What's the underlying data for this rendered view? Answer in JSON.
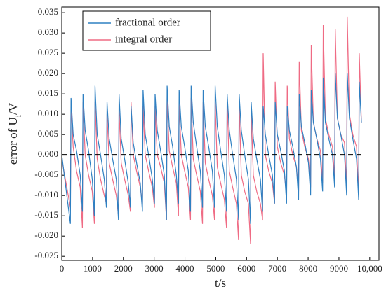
{
  "chart_data": {
    "type": "line",
    "x_label": "t/s",
    "y_label": {
      "main": "error of U",
      "sub": "i",
      "tail": "/V"
    },
    "x": [
      0,
      280,
      300,
      370,
      480,
      600,
      670,
      690,
      760,
      870,
      990,
      1060,
      1080,
      1150,
      1260,
      1380,
      1450,
      1470,
      1540,
      1650,
      1770,
      1840,
      1860,
      1930,
      2040,
      2160,
      2230,
      2250,
      2320,
      2430,
      2550,
      2620,
      2640,
      2710,
      2820,
      2940,
      3010,
      3030,
      3100,
      3210,
      3330,
      3400,
      3420,
      3490,
      3600,
      3720,
      3790,
      3810,
      3880,
      3990,
      4110,
      4180,
      4200,
      4270,
      4380,
      4500,
      4570,
      4590,
      4660,
      4770,
      4890,
      4960,
      4980,
      5050,
      5160,
      5280,
      5350,
      5370,
      5440,
      5550,
      5670,
      5740,
      5760,
      5830,
      5940,
      6060,
      6130,
      6150,
      6220,
      6330,
      6450,
      6520,
      6540,
      6610,
      6720,
      6840,
      6910,
      6930,
      7000,
      7110,
      7230,
      7300,
      7320,
      7390,
      7500,
      7620,
      7690,
      7710,
      7780,
      7890,
      8010,
      8080,
      8100,
      8170,
      8280,
      8400,
      8470,
      8490,
      8560,
      8670,
      8790,
      8860,
      8880,
      8950,
      9060,
      9180,
      9250,
      9270,
      9340,
      9450,
      9570,
      9640,
      9660,
      9730
    ],
    "series": [
      {
        "name": "integral order",
        "color": "#ef6b84",
        "values": [
          -0.001,
          -0.013,
          0.012,
          0.002,
          -0.004,
          -0.008,
          -0.018,
          0.013,
          0.0,
          -0.005,
          -0.009,
          -0.017,
          0.013,
          -0.001,
          -0.006,
          -0.01,
          -0.012,
          0.01,
          -0.002,
          -0.006,
          -0.01,
          -0.015,
          0.011,
          -0.002,
          -0.006,
          -0.01,
          -0.014,
          0.013,
          0.0,
          -0.004,
          -0.008,
          -0.012,
          0.012,
          0.0,
          -0.004,
          -0.008,
          -0.013,
          0.012,
          0.0,
          -0.003,
          -0.007,
          -0.016,
          0.014,
          0.001,
          -0.003,
          -0.007,
          -0.015,
          0.013,
          0.0,
          -0.004,
          -0.008,
          -0.016,
          0.014,
          -0.001,
          -0.005,
          -0.009,
          -0.017,
          0.013,
          -0.002,
          -0.006,
          -0.01,
          -0.016,
          0.013,
          -0.003,
          -0.007,
          -0.011,
          -0.018,
          0.014,
          -0.004,
          -0.008,
          -0.012,
          -0.021,
          0.013,
          -0.005,
          -0.009,
          -0.012,
          -0.022,
          0.011,
          -0.005,
          -0.009,
          -0.012,
          -0.016,
          0.025,
          0.0,
          -0.004,
          -0.007,
          -0.012,
          0.018,
          0.002,
          -0.002,
          -0.005,
          -0.01,
          0.017,
          0.004,
          0.0,
          -0.003,
          -0.009,
          0.023,
          0.006,
          0.002,
          -0.001,
          -0.008,
          0.027,
          0.008,
          0.004,
          0.001,
          -0.007,
          0.032,
          0.009,
          0.005,
          0.002,
          -0.006,
          0.031,
          0.009,
          0.005,
          0.003,
          -0.008,
          0.034,
          0.01,
          0.005,
          0.002,
          -0.01,
          0.025,
          0.008
        ]
      },
      {
        "name": "fractional order",
        "color": "#2f80c2",
        "values": [
          0.0,
          -0.017,
          0.014,
          0.005,
          0.001,
          -0.005,
          -0.014,
          0.015,
          0.006,
          0.001,
          -0.006,
          -0.015,
          0.017,
          0.005,
          0.0,
          -0.006,
          -0.013,
          0.013,
          0.004,
          -0.001,
          -0.006,
          -0.016,
          0.015,
          0.004,
          -0.001,
          -0.007,
          -0.013,
          0.012,
          0.003,
          -0.002,
          -0.007,
          -0.014,
          0.016,
          0.005,
          0.0,
          -0.006,
          -0.012,
          0.015,
          0.006,
          0.001,
          -0.005,
          -0.016,
          0.017,
          0.007,
          0.002,
          -0.005,
          -0.012,
          0.016,
          0.007,
          0.002,
          -0.004,
          -0.014,
          0.017,
          0.008,
          0.002,
          -0.004,
          -0.013,
          0.016,
          0.007,
          0.002,
          -0.004,
          -0.013,
          0.017,
          0.007,
          0.001,
          -0.005,
          -0.014,
          0.015,
          0.006,
          0.0,
          -0.006,
          -0.016,
          0.015,
          0.006,
          0.0,
          -0.006,
          -0.017,
          0.013,
          0.004,
          -0.001,
          -0.006,
          -0.014,
          0.012,
          0.005,
          0.0,
          -0.005,
          -0.012,
          0.013,
          0.005,
          0.001,
          -0.004,
          -0.012,
          0.012,
          0.006,
          0.002,
          -0.003,
          -0.011,
          0.015,
          0.007,
          0.003,
          -0.002,
          -0.01,
          0.016,
          0.008,
          0.004,
          -0.001,
          -0.009,
          0.019,
          0.008,
          0.004,
          0.0,
          -0.008,
          0.02,
          0.009,
          0.005,
          0.0,
          -0.01,
          0.02,
          0.009,
          0.004,
          -0.001,
          -0.011,
          0.018,
          0.008
        ]
      }
    ],
    "legend_order": [
      1,
      0
    ],
    "legend": "upper left",
    "reference_line": {
      "y": 0,
      "color": "#000000",
      "dashed": true
    },
    "xlim": [
      0,
      10300
    ],
    "xticks": [
      0,
      1000,
      2000,
      3000,
      4000,
      5000,
      6000,
      7000,
      8000,
      9000,
      {
        "value": 10000,
        "label": "10,000"
      }
    ],
    "ylim": [
      -0.026,
      0.0364
    ],
    "yticks": [
      -0.025,
      {
        "value": -0.02,
        "label": "-0.020"
      },
      -0.015,
      {
        "value": -0.01,
        "label": "-0.010"
      },
      -0.005,
      {
        "value": 0,
        "label": "0.000"
      },
      0.005,
      {
        "value": 0.01,
        "label": "0.010"
      },
      0.015,
      {
        "value": 0.02,
        "label": "0.020"
      },
      0.025,
      {
        "value": 0.03,
        "label": "0.030"
      },
      0.035
    ]
  }
}
